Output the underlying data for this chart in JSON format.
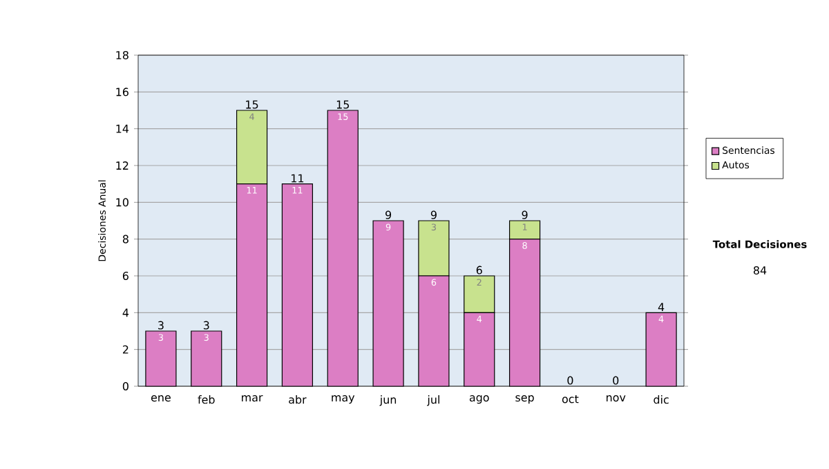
{
  "chart_data": {
    "type": "bar",
    "stacked": true,
    "ylabel": "Decisiones Anual",
    "categories": [
      "ene",
      "feb",
      "mar",
      "abr",
      "may",
      "jun",
      "jul",
      "ago",
      "sep",
      "oct",
      "nov",
      "dic"
    ],
    "series": [
      {
        "name": "Sentencias",
        "color": "#dc7ec4",
        "values": [
          3,
          3,
          11,
          11,
          15,
          9,
          6,
          4,
          8,
          0,
          0,
          4
        ],
        "value_labels": [
          "3",
          "3",
          "11",
          "11",
          "15",
          "9",
          "6",
          "4",
          "8",
          null,
          null,
          "4"
        ]
      },
      {
        "name": "Autos",
        "color": "#c8e28e",
        "values": [
          0,
          0,
          4,
          0,
          0,
          0,
          3,
          2,
          1,
          0,
          0,
          0
        ],
        "value_labels": [
          null,
          null,
          "4",
          null,
          null,
          null,
          "3",
          "2",
          "1",
          null,
          null,
          null
        ]
      }
    ],
    "totals": [
      "3",
      "3",
      "15",
      "11",
      "15",
      "9",
      "9",
      "6",
      "9",
      "0",
      "0",
      "4"
    ],
    "ylim": [
      0,
      18
    ],
    "yticks": [
      0,
      2,
      4,
      6,
      8,
      10,
      12,
      14,
      16,
      18
    ],
    "grid": "y",
    "legend": "right",
    "annotations": [
      "Total Decisiones",
      "84"
    ]
  }
}
